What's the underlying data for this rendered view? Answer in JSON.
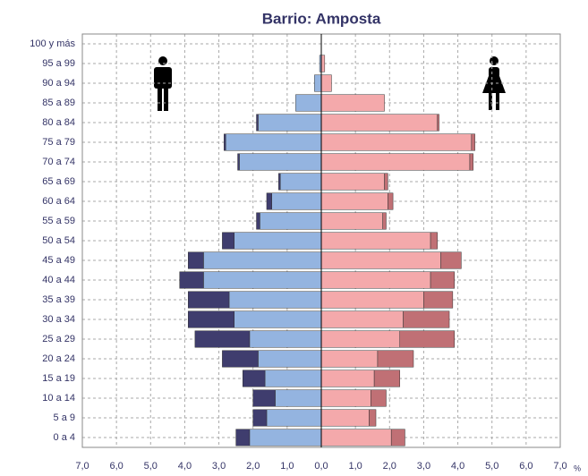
{
  "chart_data": {
    "type": "pyramid",
    "title": "Barrio: Amposta",
    "categories": [
      "0 a 4",
      "5 a 9",
      "10 a 14",
      "15 a 19",
      "20 a 24",
      "25 a 29",
      "30 a 34",
      "35 a 39",
      "40 a 44",
      "45 a 49",
      "50 a 54",
      "55 a 59",
      "60 a 64",
      "65 a 69",
      "70 a 74",
      "75 a 79",
      "80 a 84",
      "85 a 89",
      "90 a 94",
      "95 a 99",
      "100 y más"
    ],
    "series": [
      {
        "side": "left",
        "color": "#94b4e0",
        "values": [
          2.1,
          1.6,
          1.35,
          1.65,
          1.85,
          2.1,
          2.55,
          2.7,
          3.45,
          3.45,
          2.55,
          1.8,
          1.45,
          1.2,
          2.4,
          2.8,
          1.85,
          0.75,
          0.2,
          0.05,
          0
        ]
      },
      {
        "side": "left",
        "color": "#3f3d6e",
        "values": [
          0.4,
          0.4,
          0.65,
          0.65,
          1.05,
          1.6,
          1.35,
          1.2,
          0.7,
          0.45,
          0.35,
          0.1,
          0.15,
          0.05,
          0.05,
          0.05,
          0.05,
          0,
          0,
          0,
          0
        ]
      },
      {
        "side": "right",
        "color": "#f4a9ab",
        "values": [
          2.05,
          1.4,
          1.45,
          1.55,
          1.65,
          2.3,
          2.4,
          3.0,
          3.2,
          3.5,
          3.2,
          1.8,
          1.95,
          1.85,
          4.35,
          4.4,
          3.4,
          1.85,
          0.3,
          0.1,
          0
        ]
      },
      {
        "side": "right",
        "color": "#c07075",
        "values": [
          0.4,
          0.2,
          0.45,
          0.75,
          1.05,
          1.6,
          1.35,
          0.85,
          0.7,
          0.6,
          0.2,
          0.1,
          0.15,
          0.1,
          0.1,
          0.1,
          0.05,
          0,
          0,
          0,
          0
        ]
      }
    ],
    "xlim": [
      0,
      7
    ],
    "xticks": [
      {
        "value": 0,
        "label": "0,0"
      },
      {
        "value": 1,
        "label": "1,0"
      },
      {
        "value": 2,
        "label": "2,0"
      },
      {
        "value": 3,
        "label": "3,0"
      },
      {
        "value": 4,
        "label": "4,0"
      },
      {
        "value": 5,
        "label": "5,0"
      },
      {
        "value": 6,
        "label": "6,0"
      },
      {
        "value": 7,
        "label": "7,0"
      }
    ],
    "x_unit": "%",
    "grid": true
  }
}
